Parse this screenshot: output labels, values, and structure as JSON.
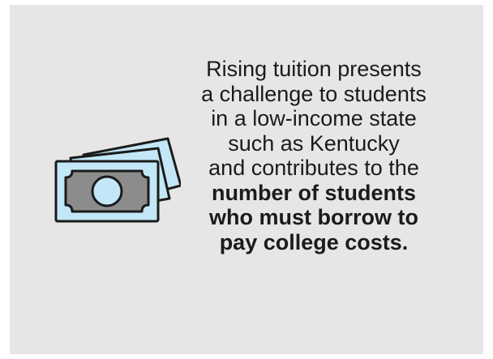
{
  "graphic": {
    "background_color": "#e6e6e6",
    "icon": "money-bills-icon",
    "icon_colors": {
      "bill_fill": "#c3e7f6",
      "inner_fill": "#8c8c8c",
      "outline": "#1b1b1b"
    },
    "lines": [
      {
        "text": "Rising tuition presents",
        "bold": false
      },
      {
        "text": "a challenge to students",
        "bold": false
      },
      {
        "text": "in a low-income state",
        "bold": false
      },
      {
        "text": "such as Kentucky",
        "bold": false
      },
      {
        "text": "and contributes to the",
        "bold": false
      },
      {
        "text": "number of students",
        "bold": true
      },
      {
        "text": "who must borrow to",
        "bold": true
      },
      {
        "text": "pay college costs.",
        "bold": true
      }
    ]
  }
}
